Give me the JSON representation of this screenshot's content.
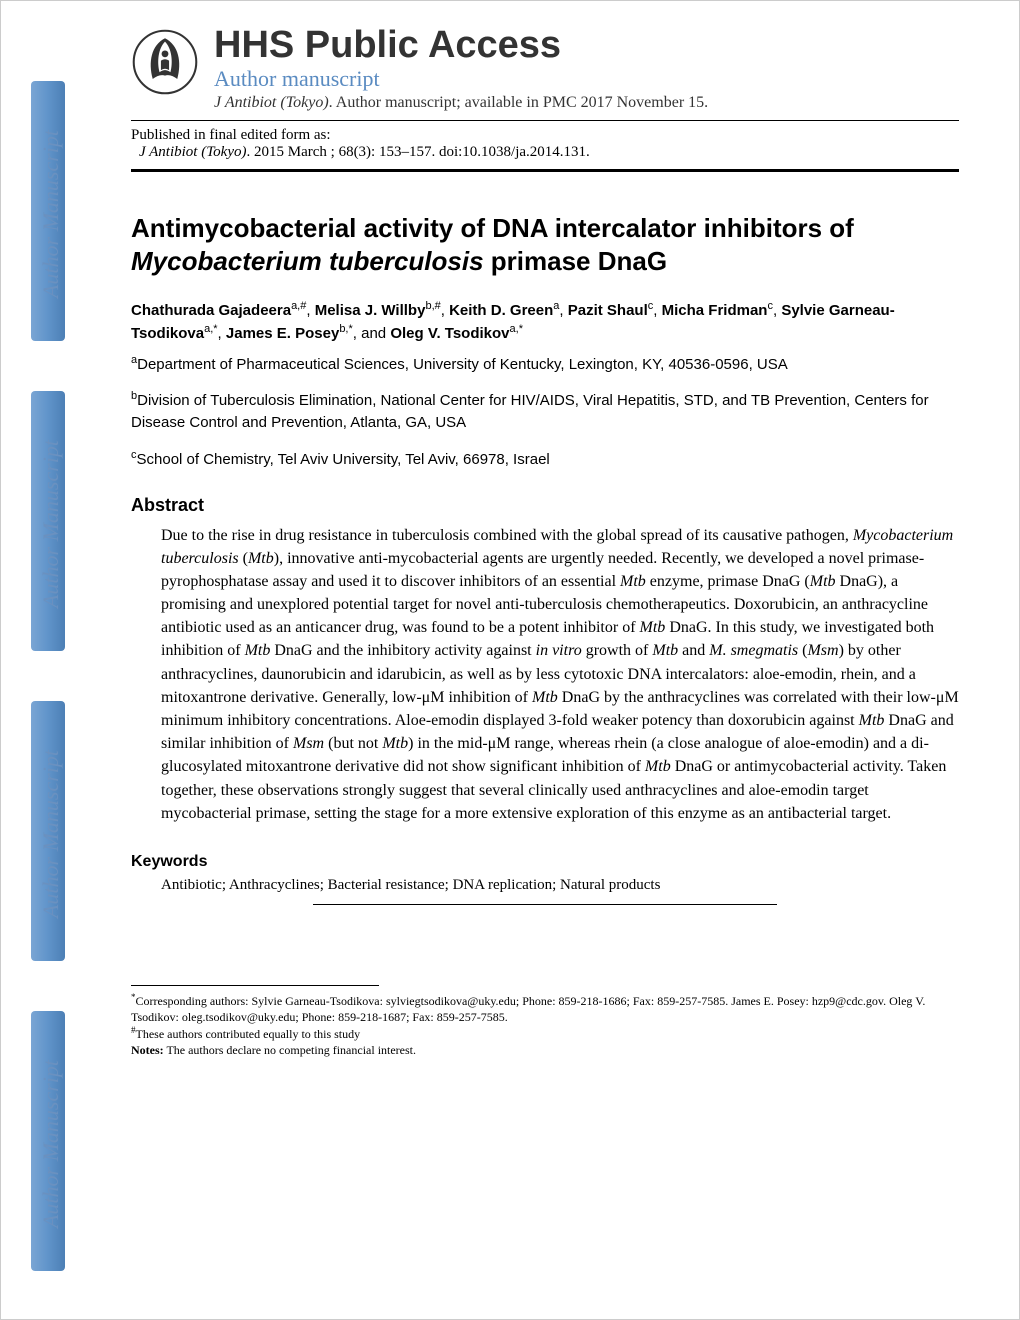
{
  "watermark": "Author Manuscript",
  "header": {
    "hhs_title": "HHS Public Access",
    "author_manuscript": "Author manuscript",
    "journal_name": "J Antibiot (Tokyo)",
    "journal_suffix": ". Author manuscript; available in PMC 2017 November 15."
  },
  "pubbox": {
    "line1": "Published in final edited form as:",
    "journal": "J Antibiot (Tokyo)",
    "citation": ". 2015 March ; 68(3): 153–157. doi:10.1038/ja.2014.131."
  },
  "title": {
    "part1": "Antimycobacterial activity of DNA intercalator inhibitors of ",
    "ital": "Mycobacterium tuberculosis",
    "part2": " primase DnaG"
  },
  "authors_html": "Chathurada Gajadeera|a,#|, Melisa J. Willby|b,#|, Keith D. Green|a|, Pazit Shaul|c|, Micha Fridman|c|, Sylvie Garneau-Tsodikova|a,*|, James E. Posey|b,*|, and Oleg V. Tsodikov|a,*|",
  "author_names": [
    "Chathurada Gajadeera",
    "Melisa J. Willby",
    "Keith D. Green",
    "Pazit Shaul",
    "Micha Fridman",
    "Sylvie Garneau-Tsodikova",
    "James E. Posey",
    "Oleg V. Tsodikov"
  ],
  "author_sups": [
    "a,#",
    "b,#",
    "a",
    "c",
    "c",
    "a,*",
    "b,*",
    "a,*"
  ],
  "affiliations": {
    "a": "Department of Pharmaceutical Sciences, University of Kentucky, Lexington, KY, 40536-0596, USA",
    "b": "Division of Tuberculosis Elimination, National Center for HIV/AIDS, Viral Hepatitis, STD, and TB Prevention, Centers for Disease Control and Prevention, Atlanta, GA, USA",
    "c": "School of Chemistry, Tel Aviv University, Tel Aviv, 66978, Israel"
  },
  "abstract_head": "Abstract",
  "abstract_body": "Due to the rise in drug resistance in tuberculosis combined with the global spread of its causative pathogen, <i>Mycobacterium tuberculosis</i> (<i>Mtb</i>), innovative anti-mycobacterial agents are urgently needed. Recently, we developed a novel primase-pyrophosphatase assay and used it to discover inhibitors of an essential <i>Mtb</i> enzyme, primase DnaG (<i>Mtb</i> DnaG), a promising and unexplored potential target for novel anti-tuberculosis chemotherapeutics. Doxorubicin, an anthracycline antibiotic used as an anticancer drug, was found to be a potent inhibitor of <i>Mtb</i> DnaG. In this study, we investigated both inhibition of <i>Mtb</i> DnaG and the inhibitory activity against <i>in vitro</i> growth of <i>Mtb</i> and <i>M. smegmatis</i> (<i>Msm</i>) by other anthracyclines, daunorubicin and idarubicin, as well as by less cytotoxic DNA intercalators: aloe-emodin, rhein, and a mitoxantrone derivative. Generally, low-μM inhibition of <i>Mtb</i> DnaG by the anthracyclines was correlated with their low-μM minimum inhibitory concentrations. Aloe-emodin displayed 3-fold weaker potency than doxorubicin against <i>Mtb</i> DnaG and similar inhibition of <i>Msm</i> (but not <i>Mtb</i>) in the mid-μM range, whereas rhein (a close analogue of aloe-emodin) and a di-glucosylated mitoxantrone derivative did not show significant inhibition of <i>Mtb</i> DnaG or antimycobacterial activity. Taken together, these observations strongly suggest that several clinically used anthracyclines and aloe-emodin target mycobacterial primase, setting the stage for a more extensive exploration of this enzyme as an antibacterial target.",
  "keywords_head": "Keywords",
  "keywords_body": "Antibiotic; Anthracyclines; Bacterial resistance; DNA replication; Natural products",
  "footnote_corresponding": "Corresponding authors: Sylvie Garneau-Tsodikova: sylviegtsodikova@uky.edu; Phone: 859-218-1686; Fax: 859-257-7585. James E. Posey: hzp9@cdc.gov. Oleg V. Tsodikov: oleg.tsodikov@uky.edu; Phone: 859-218-1687; Fax: 859-257-7585.",
  "footnote_equal": "These authors contributed equally to this study",
  "footnote_notes_label": "Notes:",
  "footnote_notes": " The authors declare no competing financial interest.",
  "colors": {
    "accent_blue": "#5a8bc1",
    "watermark_blue": "#6a91c0",
    "bar_gradient_start": "#7aa5d4",
    "bar_gradient_end": "#4c7fb5",
    "text": "#000000",
    "background": "#ffffff"
  }
}
